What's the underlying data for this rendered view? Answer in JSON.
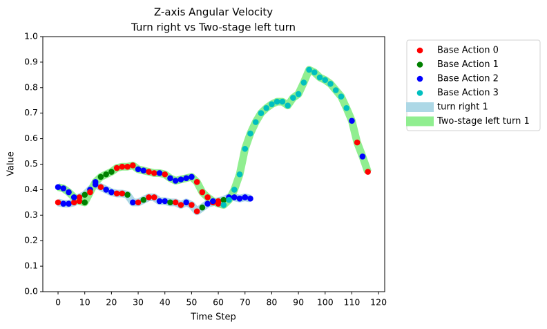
{
  "chart_data": {
    "type": "line",
    "title": "Z-axis Angular Velocity",
    "subtitle": "Turn right vs Two-stage left turn",
    "xlabel": "Time Step",
    "ylabel": "Value",
    "xlim": [
      -5.7,
      122.3
    ],
    "xticks": [
      0,
      10,
      20,
      30,
      40,
      50,
      60,
      70,
      80,
      90,
      100,
      110,
      120
    ],
    "ylim": [
      0,
      1
    ],
    "yticks": [
      {
        "value": 0,
        "label": "0.0"
      },
      0.1,
      0.2,
      0.3,
      0.4,
      0.5,
      0.6,
      0.7,
      0.8,
      0.9,
      {
        "value": 1,
        "label": "1.0"
      }
    ],
    "action_series": [
      {
        "name": "Base Action 0",
        "color": "#ff0000"
      },
      {
        "name": "Base Action 1",
        "color": "#008000"
      },
      {
        "name": "Base Action 2",
        "color": "#0000ff"
      },
      {
        "name": "Base Action 3",
        "color": "#00bfbf"
      }
    ],
    "series": [
      {
        "name": "turn right 1",
        "color": "#add8e6",
        "x": [
          0,
          2,
          4,
          6,
          8,
          10,
          12,
          14,
          16,
          18,
          20,
          22,
          24,
          26,
          28,
          30,
          32,
          34,
          36,
          38,
          40,
          42,
          44,
          46,
          48,
          50,
          52,
          54,
          56,
          58,
          60,
          62,
          64,
          66,
          68,
          70,
          72
        ],
        "values": [
          0.35,
          0.345,
          0.345,
          0.35,
          0.37,
          0.38,
          0.4,
          0.42,
          0.41,
          0.4,
          0.39,
          0.385,
          0.385,
          0.38,
          0.35,
          0.35,
          0.36,
          0.37,
          0.37,
          0.355,
          0.355,
          0.35,
          0.35,
          0.34,
          0.35,
          0.34,
          0.315,
          0.33,
          0.345,
          0.35,
          0.355,
          0.36,
          0.37,
          0.37,
          0.365,
          0.37,
          0.365
        ],
        "actions": [
          0,
          2,
          2,
          0,
          0,
          1,
          2,
          2,
          0,
          2,
          2,
          0,
          0,
          1,
          2,
          0,
          1,
          0,
          0,
          2,
          2,
          1,
          0,
          0,
          2,
          0,
          0,
          1,
          2,
          0,
          0,
          1,
          2,
          2,
          2,
          2,
          2
        ]
      },
      {
        "name": "Two-stage left turn 1",
        "color": "#90ee90",
        "x": [
          0,
          2,
          4,
          6,
          8,
          10,
          12,
          14,
          16,
          18,
          20,
          22,
          24,
          26,
          28,
          30,
          32,
          34,
          36,
          38,
          40,
          42,
          44,
          46,
          48,
          50,
          52,
          54,
          56,
          58,
          60,
          62,
          64,
          66,
          68,
          70,
          72,
          74,
          76,
          78,
          80,
          82,
          84,
          86,
          88,
          90,
          92,
          94,
          96,
          98,
          100,
          102,
          104,
          106,
          108,
          110,
          112,
          114,
          116
        ],
        "values": [
          0.41,
          0.405,
          0.39,
          0.37,
          0.355,
          0.35,
          0.39,
          0.43,
          0.45,
          0.46,
          0.47,
          0.485,
          0.49,
          0.49,
          0.495,
          0.48,
          0.475,
          0.47,
          0.465,
          0.465,
          0.46,
          0.445,
          0.435,
          0.44,
          0.445,
          0.45,
          0.43,
          0.39,
          0.37,
          0.355,
          0.345,
          0.34,
          0.36,
          0.4,
          0.46,
          0.56,
          0.62,
          0.665,
          0.7,
          0.72,
          0.735,
          0.745,
          0.745,
          0.73,
          0.76,
          0.775,
          0.82,
          0.87,
          0.86,
          0.84,
          0.83,
          0.815,
          0.79,
          0.765,
          0.72,
          0.67,
          0.585,
          0.53,
          0.47
        ],
        "actions": [
          2,
          2,
          2,
          2,
          0,
          1,
          0,
          2,
          1,
          1,
          1,
          0,
          0,
          0,
          0,
          2,
          2,
          0,
          0,
          2,
          0,
          2,
          2,
          2,
          2,
          2,
          0,
          0,
          0,
          2,
          0,
          3,
          3,
          3,
          3,
          3,
          3,
          3,
          3,
          3,
          3,
          3,
          3,
          3,
          3,
          3,
          3,
          3,
          3,
          3,
          3,
          3,
          3,
          3,
          3,
          2,
          0,
          2,
          0
        ]
      }
    ]
  }
}
